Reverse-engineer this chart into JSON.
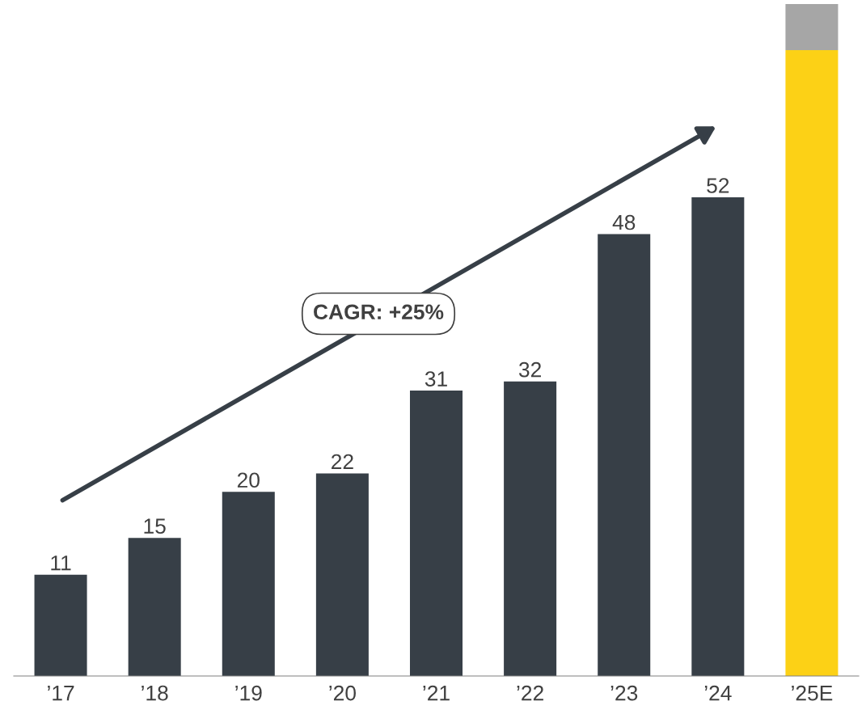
{
  "chart_data": {
    "type": "bar",
    "stacked": true,
    "categories": [
      "’17",
      "’18",
      "’19",
      "’20",
      "’21",
      "’22",
      "’23",
      "’24",
      "’25E"
    ],
    "series": [
      {
        "colors": [
          "#373f47",
          "#373f47",
          "#373f47",
          "#373f47",
          "#373f47",
          "#373f47",
          "#373f47",
          "#373f47",
          "#fcd116"
        ],
        "values": [
          11,
          15,
          20,
          22,
          31,
          32,
          48,
          52,
          68
        ],
        "value_labels": [
          "11",
          "15",
          "20",
          "22",
          "31",
          "32",
          "48",
          "52",
          null
        ]
      },
      {
        "color": "#a6a6a6",
        "values": [
          null,
          null,
          null,
          null,
          null,
          null,
          null,
          null,
          5
        ]
      }
    ],
    "ylim": [
      0,
      73
    ],
    "tick_labels": "x",
    "grid": false,
    "legend": false,
    "annotations": [
      "CAGR: +25%"
    ]
  }
}
